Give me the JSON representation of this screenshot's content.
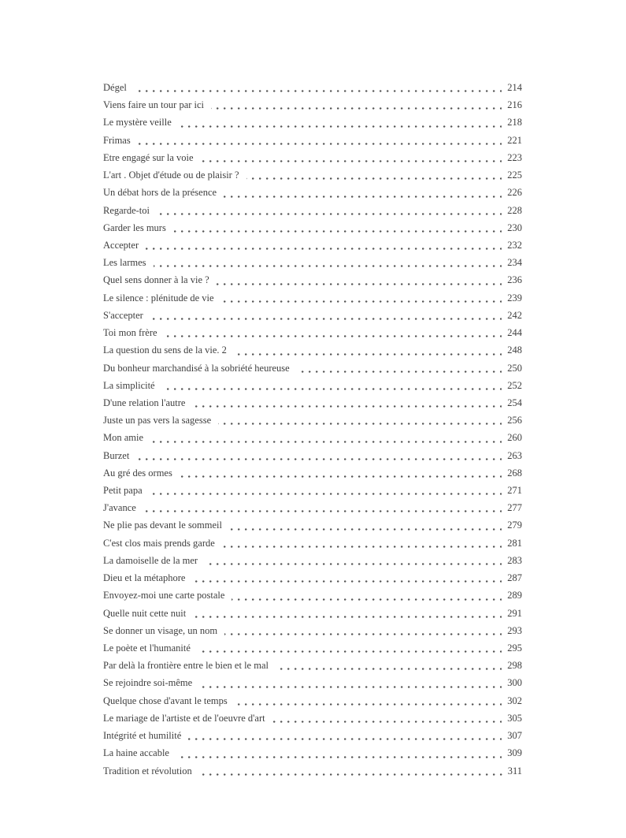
{
  "page": {
    "background_color": "#ffffff",
    "text_color": "#3f3f3f",
    "leader_dot_color": "#565656"
  },
  "toc": {
    "entries": [
      {
        "title": "Dégel",
        "page": "214"
      },
      {
        "title": "Viens faire un tour par ici",
        "page": "216"
      },
      {
        "title": "Le mystère veille",
        "page": "218"
      },
      {
        "title": "Frimas",
        "page": "221"
      },
      {
        "title": "Etre engagé sur la voie",
        "page": "223"
      },
      {
        "title": "L'art . Objet d'étude ou de plaisir ?",
        "page": "225"
      },
      {
        "title": "Un débat hors de la présence",
        "page": "226"
      },
      {
        "title": "Regarde-toi",
        "page": "228"
      },
      {
        "title": "Garder les murs",
        "page": "230"
      },
      {
        "title": "Accepter",
        "page": "232"
      },
      {
        "title": "Les larmes",
        "page": "234"
      },
      {
        "title": "Quel sens donner à la vie ?",
        "page": "236"
      },
      {
        "title": "Le silence : plénitude de vie",
        "page": "239"
      },
      {
        "title": "S'accepter",
        "page": "242"
      },
      {
        "title": "Toi mon frère",
        "page": "244"
      },
      {
        "title": "La question du sens de la vie. 2",
        "page": "248"
      },
      {
        "title": "Du bonheur marchandisé à la sobriété heureuse",
        "page": "250"
      },
      {
        "title": "La simplicité",
        "page": "252"
      },
      {
        "title": "D'une relation l'autre",
        "page": "254"
      },
      {
        "title": "Juste un pas vers la sagesse",
        "page": "256"
      },
      {
        "title": "Mon amie",
        "page": "260"
      },
      {
        "title": "Burzet",
        "page": "263"
      },
      {
        "title": "Au gré des ormes",
        "page": "268"
      },
      {
        "title": "Petit papa",
        "page": "271"
      },
      {
        "title": "J'avance",
        "page": "277"
      },
      {
        "title": "Ne plie pas devant le sommeil",
        "page": "279"
      },
      {
        "title": "C'est clos mais prends garde",
        "page": "281"
      },
      {
        "title": "La damoiselle de la mer",
        "page": "283"
      },
      {
        "title": "Dieu et la métaphore",
        "page": "287"
      },
      {
        "title": "Envoyez-moi une carte postale",
        "page": "289"
      },
      {
        "title": "Quelle nuit cette nuit",
        "page": "291"
      },
      {
        "title": "Se donner un visage, un nom",
        "page": "293"
      },
      {
        "title": "Le poète et l'humanité",
        "page": "295"
      },
      {
        "title": "Par delà la frontière entre le bien et le mal",
        "page": "298"
      },
      {
        "title": "Se rejoindre soi-même",
        "page": "300"
      },
      {
        "title": "Quelque chose d'avant le temps",
        "page": "302"
      },
      {
        "title": "Le mariage de l'artiste et de l'oeuvre d'art",
        "page": "305"
      },
      {
        "title": "Intégrité et humilité",
        "page": "307"
      },
      {
        "title": "La haine accable",
        "page": "309"
      },
      {
        "title": "Tradition et révolution",
        "page": "311"
      }
    ]
  }
}
